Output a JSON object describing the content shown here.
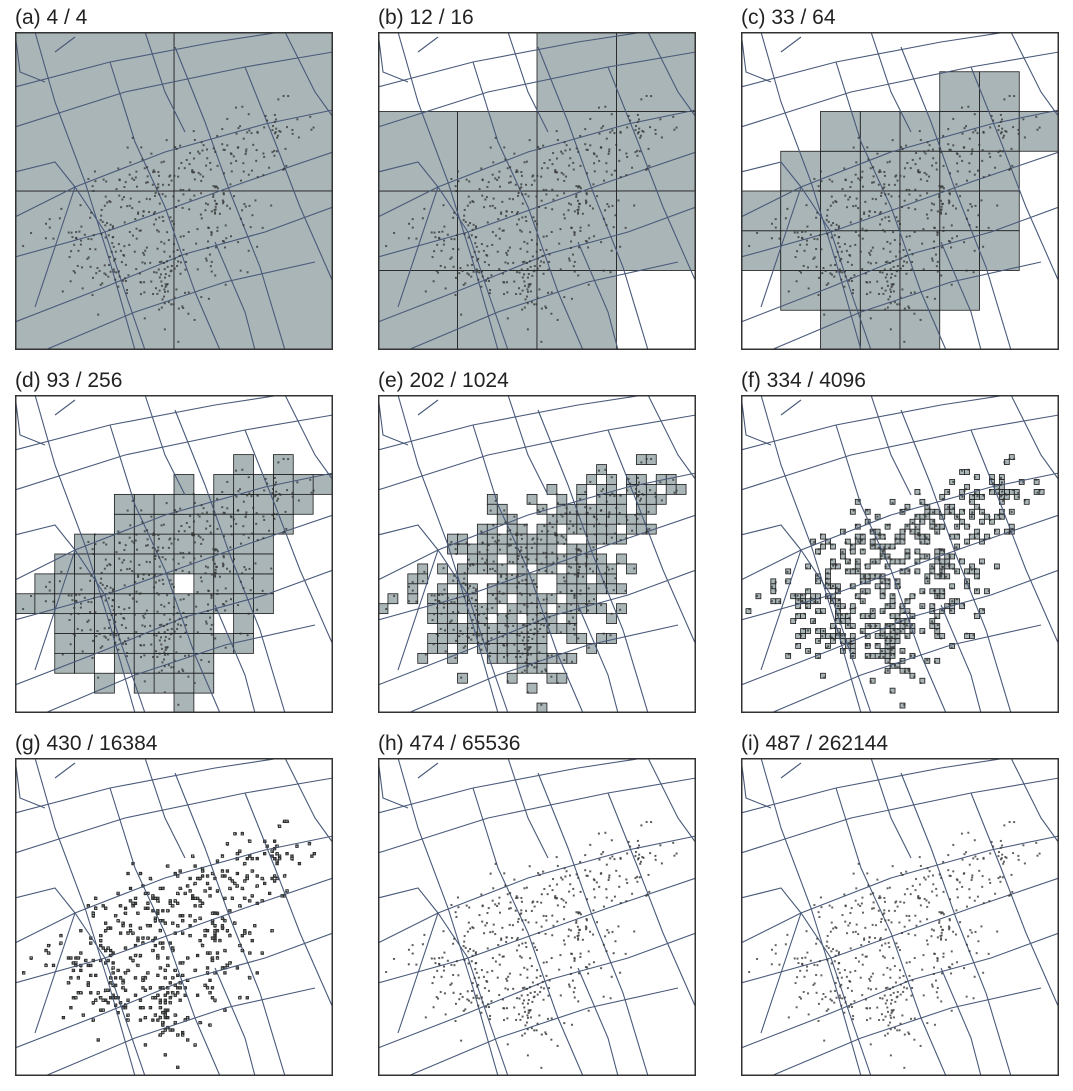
{
  "colors": {
    "cell_fill": "#a9b5b7",
    "cell_stroke": "#1a1a1a",
    "street": "#4a5a7a",
    "point": "#333333",
    "frame": "#333333"
  },
  "panels": [
    {
      "label": "(a) 4 / 4",
      "occupied": 4,
      "total": 4,
      "grid_side": 2
    },
    {
      "label": "(b) 12 / 16",
      "occupied": 12,
      "total": 16,
      "grid_side": 4
    },
    {
      "label": "(c) 33 / 64",
      "occupied": 33,
      "total": 64,
      "grid_side": 8
    },
    {
      "label": "(d) 93 / 256",
      "occupied": 93,
      "total": 256,
      "grid_side": 16
    },
    {
      "label": "(e) 202 / 1024",
      "occupied": 202,
      "total": 1024,
      "grid_side": 32
    },
    {
      "label": "(f) 334 / 4096",
      "occupied": 334,
      "total": 4096,
      "grid_side": 64
    },
    {
      "label": "(g) 430 / 16384",
      "occupied": 430,
      "total": 16384,
      "grid_side": 128
    },
    {
      "label": "(h) 474 / 65536",
      "occupied": 474,
      "total": 65536,
      "grid_side": 256
    },
    {
      "label": "(i) 487 / 262144",
      "occupied": 487,
      "total": 262144,
      "grid_side": 512
    }
  ]
}
